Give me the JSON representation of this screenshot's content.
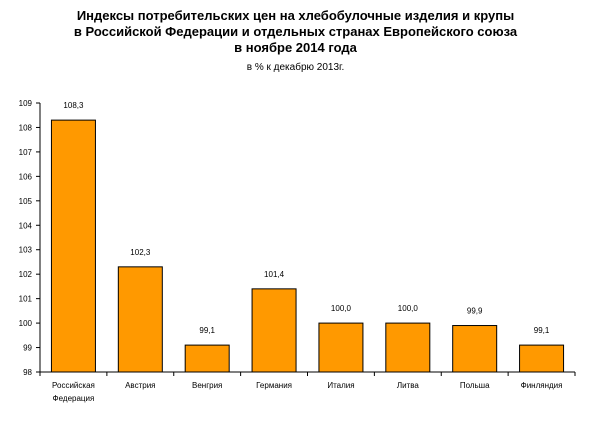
{
  "chart_data": {
    "type": "bar",
    "title": [
      "Индексы потребительских цен на хлебобулочные изделия и крупы",
      "в Российской Федерации и отдельных странах Европейского союза",
      "в ноябре 2014 года"
    ],
    "subtitle": "в % к декабрю 2013г.",
    "categories": [
      [
        "Российская",
        "Федерация"
      ],
      [
        "Австрия"
      ],
      [
        "Венгрия"
      ],
      [
        "Германия"
      ],
      [
        "Италия"
      ],
      [
        "Литва"
      ],
      [
        "Польша"
      ],
      [
        "Финляндия"
      ]
    ],
    "values": [
      108.3,
      102.3,
      99.1,
      101.4,
      100.0,
      100.0,
      99.9,
      99.1
    ],
    "value_labels": [
      "108,3",
      "102,3",
      "99,1",
      "101,4",
      "100,0",
      "100,0",
      "99,9",
      "99,1"
    ],
    "ylim": [
      98,
      109
    ],
    "yticks": [
      98,
      99,
      100,
      101,
      102,
      103,
      104,
      105,
      106,
      107,
      108,
      109
    ],
    "bar_color": "#FF9900",
    "grid": false,
    "legend": false
  }
}
